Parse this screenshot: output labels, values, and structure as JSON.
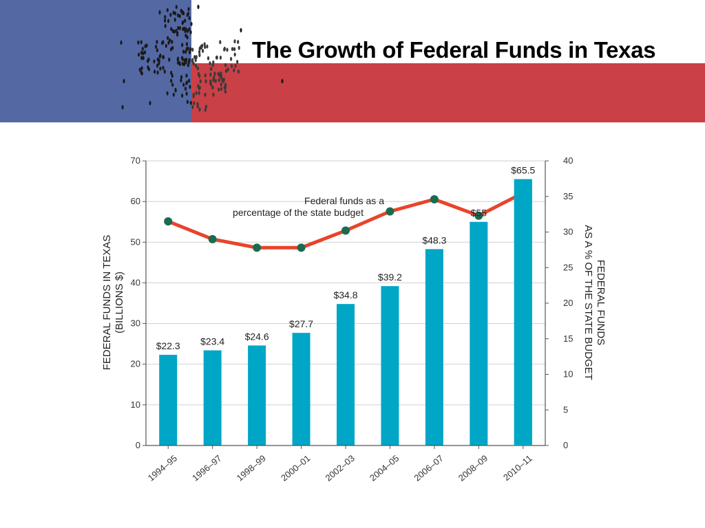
{
  "slide": {
    "title": "The Growth of Federal Funds in Texas",
    "banner_colors": {
      "blue": "#5468a4",
      "red": "#c94046",
      "white": "#ffffff"
    }
  },
  "chart_data": {
    "type": "bar",
    "categories": [
      "1994–95",
      "1996–97",
      "1998–99",
      "2000–01",
      "2002–03",
      "2004–05",
      "2006–07",
      "2008–09",
      "2010–11"
    ],
    "series": [
      {
        "type": "bar",
        "axis": "left",
        "values": [
          22.3,
          23.4,
          24.6,
          27.7,
          34.8,
          39.2,
          48.3,
          55,
          65.5
        ],
        "labels": [
          "$22.3",
          "$23.4",
          "$24.6",
          "$27.7",
          "$34.8",
          "$39.2",
          "$48.3",
          "$55",
          "$65.5"
        ],
        "color": "#00a6c5"
      },
      {
        "name": "Federal funds as a percentage of the state budget",
        "type": "line",
        "axis": "right",
        "values": [
          31.5,
          29.0,
          27.8,
          27.8,
          30.2,
          32.9,
          34.6,
          32.3,
          35.5
        ],
        "color": "#e8442a",
        "marker_color": "#1a6b50"
      }
    ],
    "annotation": [
      "Federal funds as a",
      "percentage of the state budget"
    ],
    "ylabel_left": [
      "FEDERAL FUNDS IN TEXAS",
      "(BILLIONS $)"
    ],
    "ylabel_right": [
      "FEDERAL FUNDS",
      "AS A % OF THE STATE BUDGET"
    ],
    "ylim_left": [
      0,
      70
    ],
    "yticks_left": [
      0,
      10,
      20,
      30,
      40,
      50,
      60,
      70
    ],
    "ylim_right": [
      0,
      40
    ],
    "yticks_right": [
      0,
      5,
      10,
      15,
      20,
      25,
      30,
      35,
      40
    ],
    "grid": true
  }
}
